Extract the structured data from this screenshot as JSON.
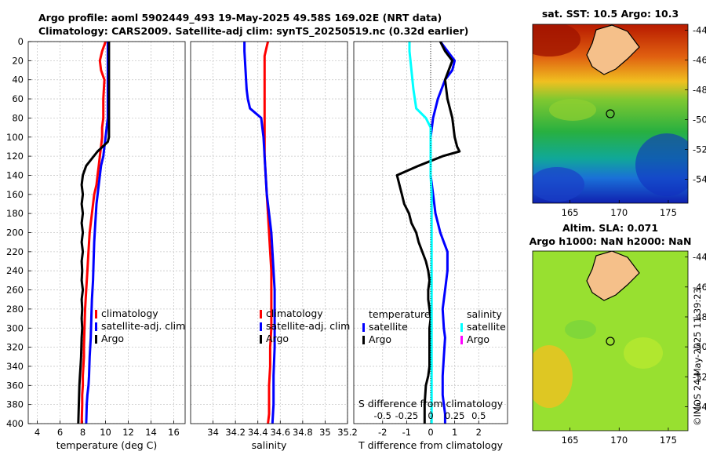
{
  "header": {
    "title_line1": "Argo profile: aoml 5902449_493 19-May-2025 49.58S 169.02E (NRT data)",
    "title_line2": "Climatology: CARS2009. Satellite-adj clim: synTS_20250519.nc (0.32d earlier)"
  },
  "watermark": "©IMOS 24-May-2025 11:39:23",
  "colors": {
    "climatology": "#ff0000",
    "satellite": "#0000ff",
    "argo": "#000000",
    "salinity_satellite": "#00ffff",
    "salinity_argo": "#ff00ff"
  },
  "chart_data": [
    {
      "type": "line",
      "panel": "temperature",
      "xlabel": "temperature (deg C)",
      "ylabel": "",
      "xlim": [
        3.2,
        17
      ],
      "ylim": [
        400,
        0
      ],
      "xticks": [
        "4",
        "6",
        "8",
        "10",
        "12",
        "14",
        "16"
      ],
      "xtick_values": [
        4,
        6,
        8,
        10,
        12,
        14,
        16
      ],
      "yticks": [
        "0",
        "20",
        "40",
        "60",
        "80",
        "100",
        "120",
        "140",
        "160",
        "180",
        "200",
        "220",
        "240",
        "260",
        "280",
        "300",
        "320",
        "340",
        "360",
        "380",
        "400"
      ],
      "grid": true,
      "legend_position": "bottom-center",
      "legend": [
        "climatology",
        "satellite-adj. clim",
        "Argo"
      ],
      "series": [
        {
          "name": "climatology",
          "color": "#ff0000",
          "x": [
            10.0,
            9.7,
            9.5,
            9.6,
            9.9,
            9.8,
            9.8,
            9.7,
            9.7,
            9.6,
            9.5,
            9.4,
            9.3,
            9.2,
            9.0,
            8.8,
            8.6,
            8.5,
            8.4,
            8.3,
            8.2,
            8.15,
            8.1,
            8.1,
            8.05,
            8.0,
            8.0,
            7.95,
            7.95,
            7.9
          ],
          "y": [
            0,
            10,
            20,
            30,
            40,
            60,
            80,
            90,
            100,
            110,
            120,
            130,
            140,
            150,
            160,
            180,
            200,
            220,
            240,
            260,
            280,
            300,
            320,
            330,
            340,
            350,
            360,
            370,
            380,
            400
          ]
        },
        {
          "name": "satellite-adj. clim",
          "color": "#0000ff",
          "x": [
            10.2,
            10.2,
            10.2,
            10.2,
            10.2,
            10.1,
            10.0,
            9.9,
            9.8,
            9.6,
            9.4,
            9.2,
            9.1,
            9.0,
            8.95,
            8.9,
            8.8,
            8.75,
            8.7,
            8.6,
            8.55,
            8.5,
            8.4,
            8.35,
            8.3
          ],
          "y": [
            0,
            20,
            40,
            60,
            80,
            90,
            100,
            110,
            120,
            130,
            150,
            170,
            190,
            210,
            230,
            250,
            270,
            290,
            310,
            330,
            350,
            360,
            370,
            380,
            400
          ]
        },
        {
          "name": "Argo",
          "color": "#000000",
          "x": [
            10.3,
            10.3,
            10.3,
            10.3,
            10.3,
            10.3,
            10.3,
            10.2,
            9.3,
            8.3,
            8.0,
            7.9,
            8.0,
            7.9,
            8.0,
            7.9,
            8.0,
            7.9,
            8.0,
            7.9,
            7.95,
            7.9,
            8.0,
            7.9,
            7.95,
            7.9,
            7.95,
            7.9,
            7.85,
            7.8,
            7.75,
            7.7,
            7.65,
            7.6
          ],
          "y": [
            0,
            20,
            40,
            60,
            80,
            90,
            100,
            105,
            115,
            130,
            140,
            150,
            160,
            170,
            180,
            190,
            200,
            210,
            220,
            230,
            240,
            250,
            260,
            270,
            280,
            290,
            300,
            310,
            330,
            340,
            350,
            360,
            380,
            400
          ]
        }
      ]
    },
    {
      "type": "line",
      "panel": "salinity",
      "xlabel": "salinity",
      "ylabel": "",
      "xlim": [
        33.8,
        35.2
      ],
      "ylim": [
        400,
        0
      ],
      "xticks": [
        "34",
        "34.2",
        "34.4",
        "34.6",
        "34.8",
        "35",
        "35.2"
      ],
      "xtick_values": [
        34,
        34.2,
        34.4,
        34.6,
        34.8,
        35,
        35.2
      ],
      "grid": true,
      "legend_position": "bottom-center",
      "legend": [
        "climatology",
        "satellite-adj. clim",
        "Argo"
      ],
      "series": [
        {
          "name": "climatology",
          "color": "#ff0000",
          "x": [
            34.49,
            34.48,
            34.46,
            34.46,
            34.46,
            34.46,
            34.46,
            34.46,
            34.47,
            34.48,
            34.49,
            34.5,
            34.51,
            34.52,
            34.52,
            34.52,
            34.52,
            34.51,
            34.51,
            34.5,
            34.5,
            34.5,
            34.49
          ],
          "y": [
            0,
            5,
            15,
            30,
            60,
            80,
            100,
            120,
            140,
            160,
            180,
            200,
            220,
            240,
            260,
            280,
            300,
            320,
            340,
            360,
            380,
            390,
            400
          ]
        },
        {
          "name": "satellite-adj. clim",
          "color": "#0000ff",
          "x": [
            34.28,
            34.28,
            34.29,
            34.3,
            34.31,
            34.33,
            34.38,
            34.43,
            34.44,
            34.45,
            34.46,
            34.47,
            34.48,
            34.5,
            34.52,
            34.53,
            34.54,
            34.55,
            34.55,
            34.55,
            34.55,
            34.54,
            34.54,
            34.53
          ],
          "y": [
            0,
            10,
            30,
            50,
            60,
            70,
            75,
            80,
            90,
            100,
            120,
            140,
            160,
            180,
            200,
            220,
            240,
            260,
            280,
            300,
            320,
            350,
            380,
            400
          ]
        },
        {
          "name": "Argo",
          "color": "#000000",
          "x": [],
          "y": []
        }
      ]
    },
    {
      "type": "line",
      "panel": "difference",
      "xlabel": "T difference from climatology",
      "top_label": "S difference from climatology",
      "xlim": [
        -3.2,
        3.2
      ],
      "top_xlim": [
        -0.8,
        0.8
      ],
      "ylim": [
        400,
        0
      ],
      "xticks": [
        "-2",
        "-1",
        "0",
        "1",
        "2"
      ],
      "xtick_values": [
        -2,
        -1,
        0,
        1,
        2
      ],
      "top_xticks": [
        "-0.5",
        "-0.25",
        "0",
        "0.25",
        "0.5"
      ],
      "top_xtick_values": [
        -0.5,
        -0.25,
        0,
        0.25,
        0.5
      ],
      "grid": true,
      "legend_position": "bottom-center",
      "legend_groups": [
        {
          "header": "temperature",
          "items": [
            "satellite",
            "Argo"
          ]
        },
        {
          "header": "salinity",
          "items": [
            "satellite",
            "Argo"
          ]
        }
      ],
      "series": [
        {
          "name": "temperature satellite",
          "color": "#0000ff",
          "axis": "T",
          "x": [
            0.4,
            0.7,
            1.0,
            0.9,
            0.6,
            0.3,
            0.1,
            0.0,
            0.0,
            0.0,
            0.1,
            0.2,
            0.3,
            0.4,
            0.55,
            0.7,
            0.7,
            0.6,
            0.5,
            0.55,
            0.6,
            0.55,
            0.5,
            0.5,
            0.55,
            0.6,
            0.6
          ],
          "y": [
            0,
            10,
            20,
            30,
            40,
            60,
            80,
            100,
            120,
            140,
            160,
            180,
            190,
            200,
            210,
            220,
            240,
            260,
            280,
            300,
            310,
            330,
            350,
            370,
            380,
            390,
            400
          ]
        },
        {
          "name": "temperature Argo",
          "color": "#000000",
          "axis": "T",
          "x": [
            0.4,
            0.5,
            0.6,
            0.9,
            0.6,
            0.7,
            0.9,
            1.0,
            1.1,
            1.2,
            0.5,
            0.0,
            -0.5,
            -1.4,
            -1.3,
            -1.2,
            -1.1,
            -0.9,
            -0.8,
            -0.6,
            -0.5,
            -0.35,
            -0.2,
            -0.1,
            -0.05,
            -0.1,
            -0.1,
            -0.05,
            0.0,
            -0.05,
            -0.05,
            -0.05,
            -0.05,
            -0.1,
            -0.2,
            -0.25,
            -0.25
          ],
          "y": [
            0,
            5,
            10,
            20,
            40,
            60,
            80,
            100,
            110,
            115,
            120,
            125,
            130,
            140,
            150,
            160,
            170,
            180,
            190,
            200,
            210,
            220,
            230,
            240,
            250,
            260,
            270,
            280,
            290,
            300,
            320,
            330,
            340,
            350,
            360,
            380,
            400
          ]
        },
        {
          "name": "salinity satellite",
          "color": "#00ffff",
          "axis": "S",
          "x": [
            -0.22,
            -0.22,
            -0.2,
            -0.18,
            -0.15,
            -0.05,
            0.0,
            0.0,
            0.0,
            0.0,
            0.01,
            0.01,
            0.01,
            0.01,
            0.01,
            0.01,
            0.01,
            0.01,
            0.01,
            0.01,
            0.01
          ],
          "y": [
            0,
            10,
            30,
            50,
            70,
            80,
            90,
            100,
            120,
            140,
            160,
            180,
            200,
            220,
            240,
            260,
            280,
            300,
            340,
            370,
            400
          ]
        },
        {
          "name": "salinity Argo",
          "color": "#ff00ff",
          "axis": "S",
          "x": [],
          "y": []
        }
      ]
    },
    {
      "type": "heatmap",
      "panel": "sst_map",
      "title": "sat. SST: 10.5 Argo: 10.3",
      "xlim": [
        161.2,
        177.0
      ],
      "ylim": [
        -55.6,
        -43.6
      ],
      "xticks": [
        "165",
        "170",
        "175"
      ],
      "xtick_values": [
        165,
        170,
        175
      ],
      "yticks": [
        "-44",
        "-46",
        "-48",
        "-50",
        "-52",
        "-54"
      ],
      "ytick_values": [
        -44,
        -46,
        -48,
        -50,
        -52,
        -54
      ],
      "marker": {
        "lon": 169.02,
        "lat": -49.58
      }
    },
    {
      "type": "heatmap",
      "panel": "sla_map",
      "title_line1": "Altim. SLA: 0.071",
      "title_line2": "Argo h1000: NaN h2000: NaN",
      "xlim": [
        161.2,
        177.0
      ],
      "ylim": [
        -55.6,
        -43.6
      ],
      "xticks": [
        "165",
        "170",
        "175"
      ],
      "xtick_values": [
        165,
        170,
        175
      ],
      "yticks": [
        "-44",
        "-46",
        "-48",
        "-50",
        "-52",
        "-54"
      ],
      "ytick_values": [
        -44,
        -46,
        -48,
        -50,
        -52,
        -54
      ],
      "marker": {
        "lon": 169.02,
        "lat": -49.58
      }
    }
  ]
}
